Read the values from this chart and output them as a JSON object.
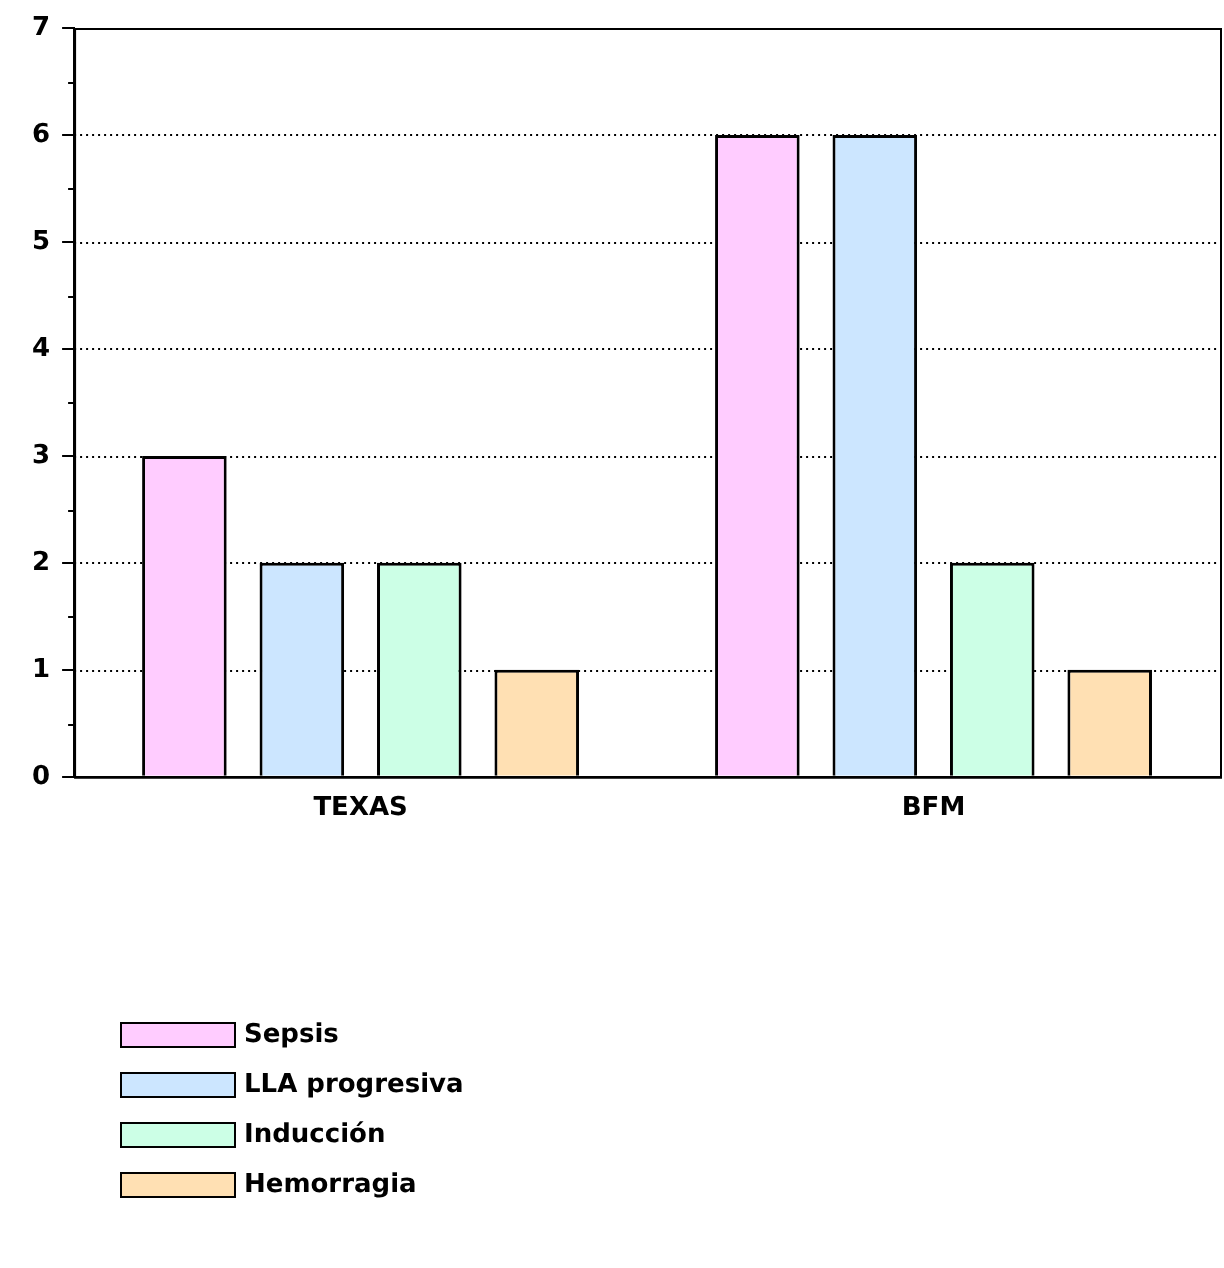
{
  "chart_data": {
    "type": "bar",
    "categories": [
      "TEXAS",
      "BFM"
    ],
    "series": [
      {
        "name": "Sepsis",
        "color": "#ffccff",
        "values": [
          3,
          6
        ]
      },
      {
        "name": "LLA progresiva",
        "color": "#cce6ff",
        "values": [
          2,
          6
        ]
      },
      {
        "name": "Inducción",
        "color": "#ccffe6",
        "values": [
          2,
          2
        ]
      },
      {
        "name": "Hemorragia",
        "color": "#ffe0b3",
        "values": [
          1,
          1
        ]
      }
    ],
    "ylim": [
      0,
      7
    ],
    "yticks": [
      0,
      1,
      2,
      3,
      4,
      5,
      6,
      7
    ],
    "grid": "y",
    "legend": "bottom left"
  }
}
